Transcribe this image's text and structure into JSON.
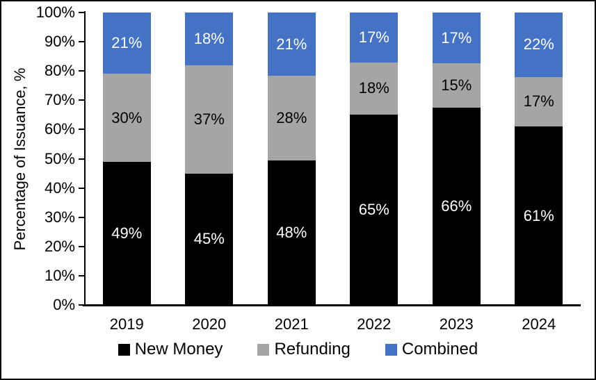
{
  "chart_data": {
    "type": "bar",
    "stacked": true,
    "percent_stacked": true,
    "title": "",
    "xlabel": "",
    "ylabel": "Percentage of Issuance, %",
    "categories": [
      "2019",
      "2020",
      "2021",
      "2022",
      "2023",
      "2024"
    ],
    "series": [
      {
        "name": "New Money",
        "color": "#000000",
        "label_color": "#ffffff",
        "values": [
          49,
          45,
          48,
          65,
          66,
          61
        ]
      },
      {
        "name": "Refunding",
        "color": "#a5a5a5",
        "label_color": "#000000",
        "values": [
          30,
          37,
          28,
          18,
          15,
          17
        ]
      },
      {
        "name": "Combined",
        "color": "#4472c4",
        "label_color": "#ffffff",
        "values": [
          21,
          18,
          21,
          17,
          17,
          22
        ]
      }
    ],
    "value_suffix": "%",
    "y_ticks": [
      "0%",
      "10%",
      "20%",
      "30%",
      "40%",
      "50%",
      "60%",
      "70%",
      "80%",
      "90%",
      "100%"
    ],
    "ylim": [
      0,
      100
    ],
    "grid": false,
    "legend_position": "bottom",
    "axis_color": "#000000"
  }
}
